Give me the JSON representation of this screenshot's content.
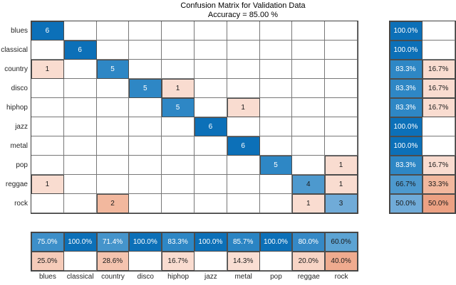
{
  "title": {
    "line1": "Confusion Matrix for Validation Data",
    "line2": "Accuracy = 85.00 %"
  },
  "chart_data": {
    "type": "heatmap",
    "subtype": "confusion-matrix",
    "title": "Confusion Matrix for Validation Data",
    "subtitle": "Accuracy = 85.00 %",
    "accuracy_percent": 85.0,
    "classes": [
      "blues",
      "classical",
      "country",
      "disco",
      "hiphop",
      "jazz",
      "metal",
      "pop",
      "reggae",
      "rock"
    ],
    "per_class_total": 6,
    "matrix": [
      [
        6,
        0,
        0,
        0,
        0,
        0,
        0,
        0,
        0,
        0
      ],
      [
        0,
        6,
        0,
        0,
        0,
        0,
        0,
        0,
        0,
        0
      ],
      [
        1,
        0,
        5,
        0,
        0,
        0,
        0,
        0,
        0,
        0
      ],
      [
        0,
        0,
        0,
        5,
        1,
        0,
        0,
        0,
        0,
        0
      ],
      [
        0,
        0,
        0,
        0,
        5,
        0,
        1,
        0,
        0,
        0
      ],
      [
        0,
        0,
        0,
        0,
        0,
        6,
        0,
        0,
        0,
        0
      ],
      [
        0,
        0,
        0,
        0,
        0,
        0,
        6,
        0,
        0,
        0
      ],
      [
        0,
        0,
        0,
        0,
        0,
        0,
        0,
        5,
        0,
        1
      ],
      [
        1,
        0,
        0,
        0,
        0,
        0,
        0,
        0,
        4,
        1
      ],
      [
        0,
        0,
        2,
        0,
        0,
        0,
        0,
        0,
        1,
        3
      ]
    ],
    "row_summary": {
      "correct": [
        100.0,
        100.0,
        83.3,
        83.3,
        83.3,
        100.0,
        100.0,
        83.3,
        66.7,
        50.0
      ],
      "incorrect": [
        null,
        null,
        16.7,
        16.7,
        16.7,
        null,
        null,
        16.7,
        33.3,
        50.0
      ]
    },
    "col_summary": {
      "correct": [
        75.0,
        100.0,
        71.4,
        100.0,
        83.3,
        100.0,
        85.7,
        100.0,
        80.0,
        60.0
      ],
      "incorrect": [
        25.0,
        null,
        28.6,
        null,
        16.7,
        null,
        14.3,
        null,
        20.0,
        40.0
      ]
    },
    "legend_position": "none",
    "grid": true,
    "colors": {
      "correct_base": "#0072bd",
      "incorrect_base": "#d95319",
      "blue": {
        "100.0": "#0c70b8",
        "85.7": "#2a84c3",
        "83.3": "#2e87c5",
        "80.0": "#3589c6",
        "75.0": "#3d8fc9",
        "71.4": "#4594cb",
        "66.7": "#4d99ce",
        "60.0": "#5ca3d3",
        "50.0": "#70abd8"
      },
      "orange": {
        "50.0": "#eca183",
        "40.0": "#efab8f",
        "33.3": "#f2b89e",
        "28.6": "#f4c4af",
        "25.0": "#f5cbb9",
        "20.0": "#f7d4c5",
        "16.7": "#f9dcd0",
        "14.3": "#f9ded3"
      },
      "text_light": "#ffffff",
      "text_dark": "#1a1a1a",
      "label_color": "#262626",
      "grid_line": "#777777",
      "outer_border": "#3f3f3f"
    }
  }
}
